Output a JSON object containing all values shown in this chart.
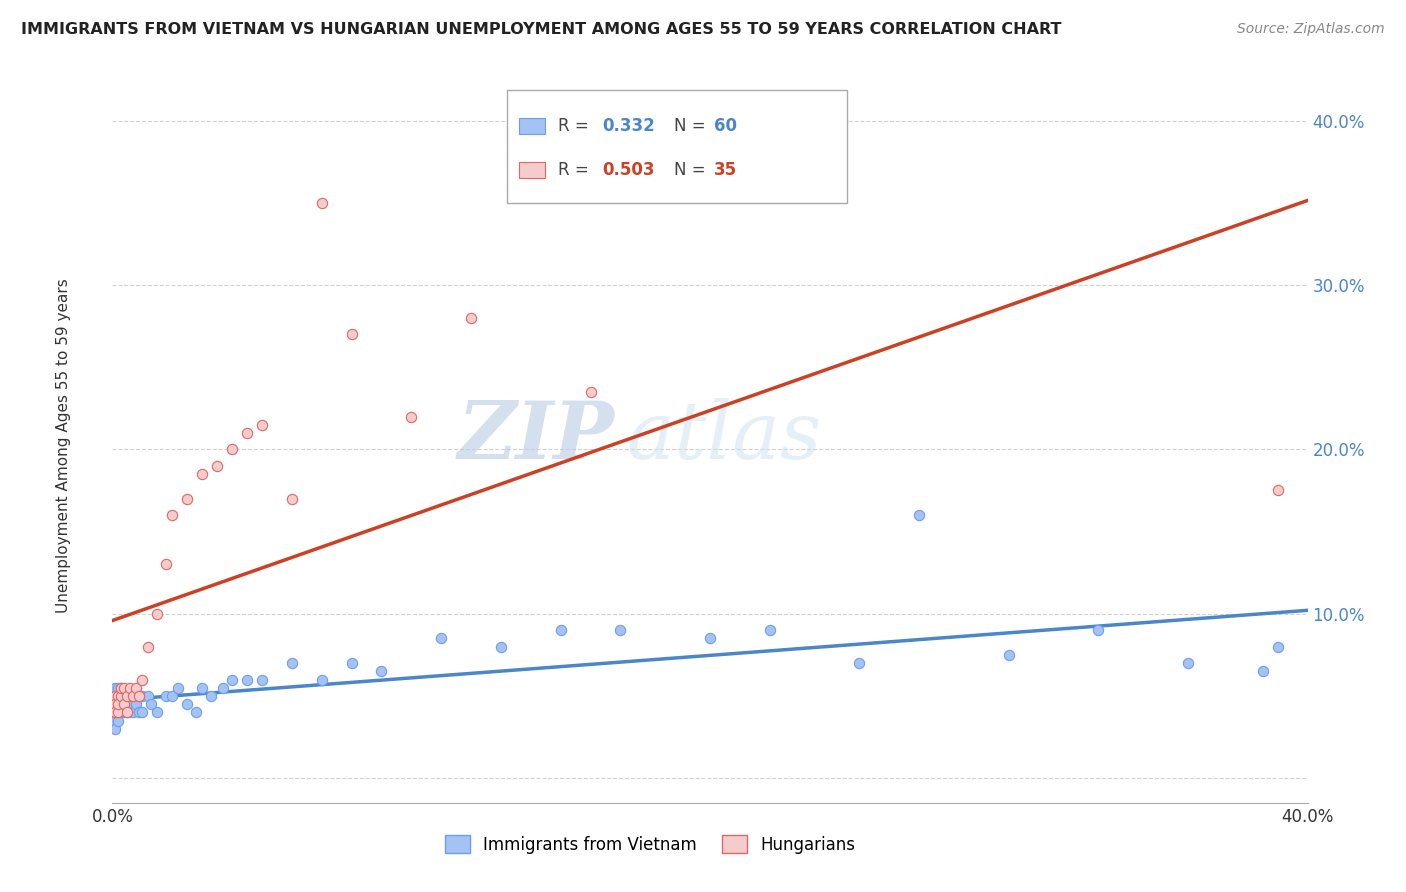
{
  "title": "IMMIGRANTS FROM VIETNAM VS HUNGARIAN UNEMPLOYMENT AMONG AGES 55 TO 59 YEARS CORRELATION CHART",
  "source": "Source: ZipAtlas.com",
  "ylabel": "Unemployment Among Ages 55 to 59 years",
  "xlim": [
    0.0,
    0.4
  ],
  "ylim": [
    -0.015,
    0.43
  ],
  "color_blue": "#a4c2f4",
  "color_blue_edge": "#6d9eeb",
  "color_blue_line": "#4a86c8",
  "color_pink": "#f4cccc",
  "color_pink_edge": "#e06666",
  "color_pink_line": "#cc4125",
  "watermark_zip": "ZIP",
  "watermark_atlas": "atlas",
  "legend_label1": "Immigrants from Vietnam",
  "legend_label2": "Hungarians",
  "blue_x": [
    0.001,
    0.001,
    0.001,
    0.001,
    0.001,
    0.001,
    0.001,
    0.002,
    0.002,
    0.002,
    0.002,
    0.002,
    0.003,
    0.003,
    0.003,
    0.003,
    0.004,
    0.004,
    0.004,
    0.005,
    0.005,
    0.006,
    0.006,
    0.007,
    0.007,
    0.008,
    0.009,
    0.01,
    0.01,
    0.012,
    0.013,
    0.015,
    0.018,
    0.02,
    0.022,
    0.025,
    0.028,
    0.03,
    0.033,
    0.037,
    0.04,
    0.045,
    0.05,
    0.06,
    0.07,
    0.08,
    0.09,
    0.11,
    0.13,
    0.15,
    0.17,
    0.2,
    0.22,
    0.25,
    0.27,
    0.3,
    0.33,
    0.36,
    0.385,
    0.39
  ],
  "blue_y": [
    0.035,
    0.04,
    0.045,
    0.05,
    0.055,
    0.04,
    0.03,
    0.035,
    0.045,
    0.05,
    0.055,
    0.04,
    0.04,
    0.045,
    0.05,
    0.055,
    0.04,
    0.045,
    0.05,
    0.04,
    0.05,
    0.04,
    0.045,
    0.04,
    0.05,
    0.045,
    0.04,
    0.04,
    0.05,
    0.05,
    0.045,
    0.04,
    0.05,
    0.05,
    0.055,
    0.045,
    0.04,
    0.055,
    0.05,
    0.055,
    0.06,
    0.06,
    0.06,
    0.07,
    0.06,
    0.07,
    0.065,
    0.085,
    0.08,
    0.09,
    0.09,
    0.085,
    0.09,
    0.07,
    0.16,
    0.075,
    0.09,
    0.07,
    0.065,
    0.08
  ],
  "pink_x": [
    0.001,
    0.001,
    0.001,
    0.001,
    0.002,
    0.002,
    0.002,
    0.003,
    0.003,
    0.004,
    0.004,
    0.005,
    0.005,
    0.006,
    0.007,
    0.008,
    0.009,
    0.01,
    0.012,
    0.015,
    0.018,
    0.02,
    0.025,
    0.03,
    0.035,
    0.04,
    0.045,
    0.05,
    0.06,
    0.07,
    0.08,
    0.1,
    0.12,
    0.16,
    0.39
  ],
  "pink_y": [
    0.04,
    0.05,
    0.045,
    0.04,
    0.04,
    0.05,
    0.045,
    0.05,
    0.055,
    0.045,
    0.055,
    0.04,
    0.05,
    0.055,
    0.05,
    0.055,
    0.05,
    0.06,
    0.08,
    0.1,
    0.13,
    0.16,
    0.17,
    0.185,
    0.19,
    0.2,
    0.21,
    0.215,
    0.17,
    0.35,
    0.27,
    0.22,
    0.28,
    0.235,
    0.175
  ]
}
